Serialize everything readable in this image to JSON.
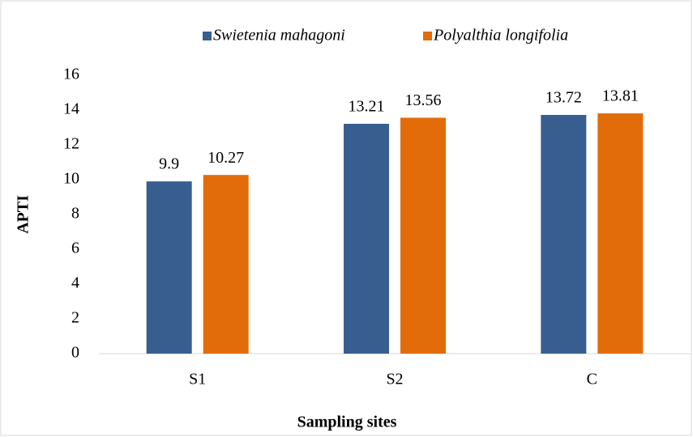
{
  "chart_data": {
    "type": "bar",
    "xlabel": "Sampling sites",
    "ylabel": "APTI",
    "categories": [
      "S1",
      "S2",
      "C"
    ],
    "series": [
      {
        "name": "Swietenia mahagoni",
        "color": "#375e8f",
        "values": [
          9.9,
          13.21,
          13.72
        ]
      },
      {
        "name": "Polyalthia longifolia",
        "color": "#e36c0a",
        "values": [
          10.27,
          13.56,
          13.81
        ]
      }
    ],
    "ylim": [
      0,
      16
    ],
    "yticks": [
      0,
      2,
      4,
      6,
      8,
      10,
      12,
      14,
      16
    ],
    "grid": false,
    "legend": "top"
  }
}
